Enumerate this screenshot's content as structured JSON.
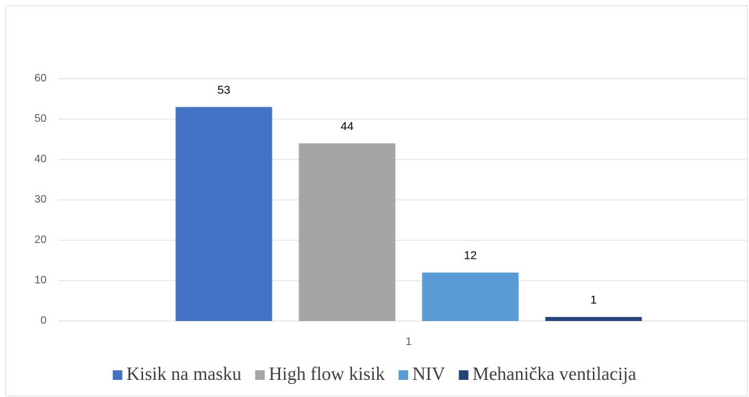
{
  "chart_data": {
    "type": "bar",
    "categories": [
      "1"
    ],
    "series": [
      {
        "name": "Kisik na masku",
        "color": "#4472c4",
        "values": [
          53
        ]
      },
      {
        "name": "High flow kisik",
        "color": "#a5a5a5",
        "values": [
          44
        ]
      },
      {
        "name": "NIV",
        "color": "#5b9bd5",
        "values": [
          12
        ]
      },
      {
        "name": "Mehanička ventilacija",
        "color": "#264478",
        "values": [
          1
        ]
      }
    ],
    "ylim": [
      0,
      60
    ],
    "yticks": [
      0,
      10,
      20,
      30,
      40,
      50,
      60
    ],
    "grid": true,
    "data_labels": true,
    "legend": "bottom"
  }
}
